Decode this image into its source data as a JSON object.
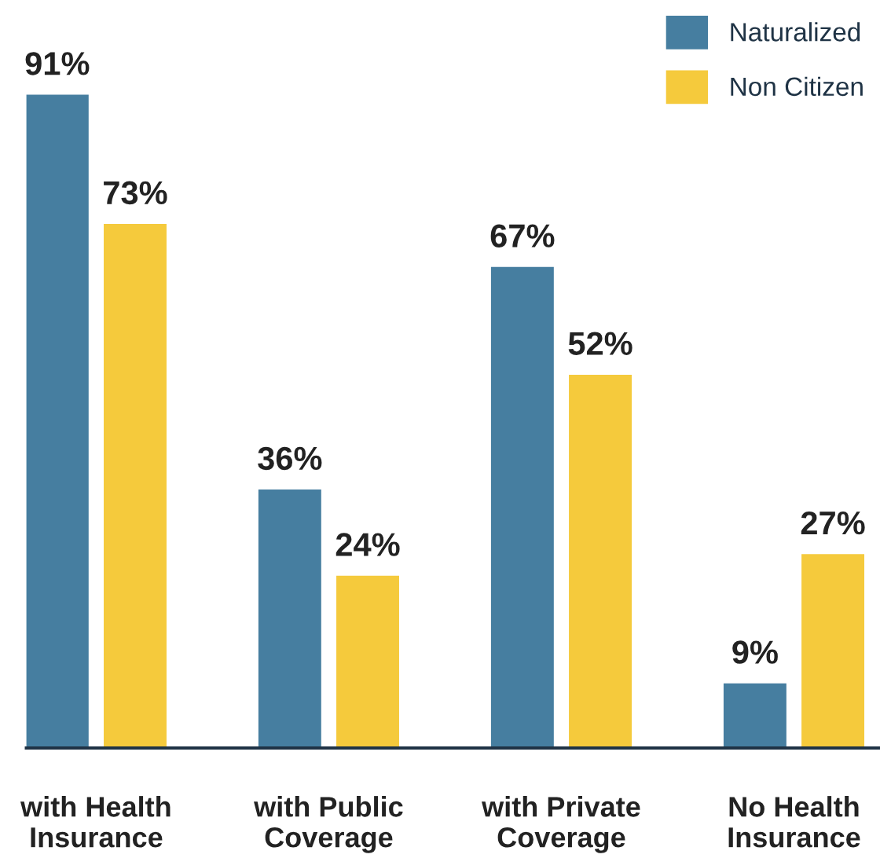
{
  "chart_data": {
    "type": "bar",
    "categories": [
      "with Health\nInsurance",
      "with Public\nCoverage",
      "with Private\nCoverage",
      "No Health\nInsurance"
    ],
    "series": [
      {
        "name": "Naturalized",
        "color": "#467ea0",
        "values": [
          91,
          36,
          67,
          9
        ],
        "value_labels": [
          "91%",
          "36%",
          "67%",
          "9%"
        ]
      },
      {
        "name": "Non Citizen",
        "color": "#f5ca3c",
        "values": [
          73,
          24,
          52,
          27
        ],
        "value_labels": [
          "73%",
          "24%",
          "52%",
          "27%"
        ]
      }
    ],
    "legend": "top right",
    "grid": false
  }
}
